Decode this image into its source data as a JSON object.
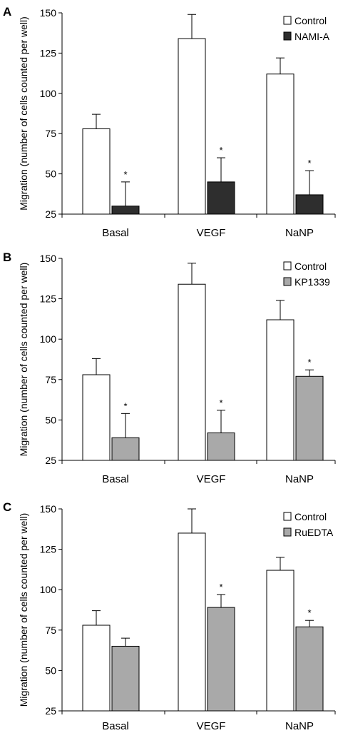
{
  "chart_data": [
    {
      "type": "bar",
      "panel_label": "A",
      "ylabel": "Migration (number of cells counted per well)",
      "categories": [
        "Basal",
        "VEGF",
        "NaNP"
      ],
      "ylim": [
        25,
        150
      ],
      "yticks": [
        25,
        50,
        75,
        100,
        125,
        150
      ],
      "legend_position": "top-right",
      "series": [
        {
          "name": "Control",
          "color": "#ffffff",
          "values": [
            78,
            134,
            112
          ],
          "errors": [
            9,
            15,
            10
          ],
          "significant": [
            false,
            false,
            false
          ]
        },
        {
          "name": "NAMI-A",
          "color": "#2e2e2e",
          "values": [
            30,
            45,
            37
          ],
          "errors": [
            15,
            15,
            15
          ],
          "significant": [
            true,
            true,
            true
          ]
        }
      ]
    },
    {
      "type": "bar",
      "panel_label": "B",
      "ylabel": "Migration (number of cells counted per well)",
      "categories": [
        "Basal",
        "VEGF",
        "NaNP"
      ],
      "ylim": [
        25,
        150
      ],
      "yticks": [
        25,
        50,
        75,
        100,
        125,
        150
      ],
      "legend_position": "top-right",
      "series": [
        {
          "name": "Control",
          "color": "#ffffff",
          "values": [
            78,
            134,
            112
          ],
          "errors": [
            10,
            13,
            12
          ],
          "significant": [
            false,
            false,
            false
          ]
        },
        {
          "name": "KP1339",
          "color": "#a9a9a9",
          "values": [
            39,
            42,
            77
          ],
          "errors": [
            15,
            14,
            4
          ],
          "significant": [
            true,
            true,
            true
          ]
        }
      ]
    },
    {
      "type": "bar",
      "panel_label": "C",
      "ylabel": "Migration (number of cells counted per well)",
      "categories": [
        "Basal",
        "VEGF",
        "NaNP"
      ],
      "ylim": [
        25,
        150
      ],
      "yticks": [
        25,
        50,
        75,
        100,
        125,
        150
      ],
      "legend_position": "top-right",
      "series": [
        {
          "name": "Control",
          "color": "#ffffff",
          "values": [
            78,
            135,
            112
          ],
          "errors": [
            9,
            15,
            8
          ],
          "significant": [
            false,
            false,
            false
          ]
        },
        {
          "name": "RuEDTA",
          "color": "#a9a9a9",
          "values": [
            65,
            89,
            77
          ],
          "errors": [
            5,
            8,
            4
          ],
          "significant": [
            false,
            true,
            true
          ]
        }
      ]
    }
  ],
  "significance_marker": "*"
}
